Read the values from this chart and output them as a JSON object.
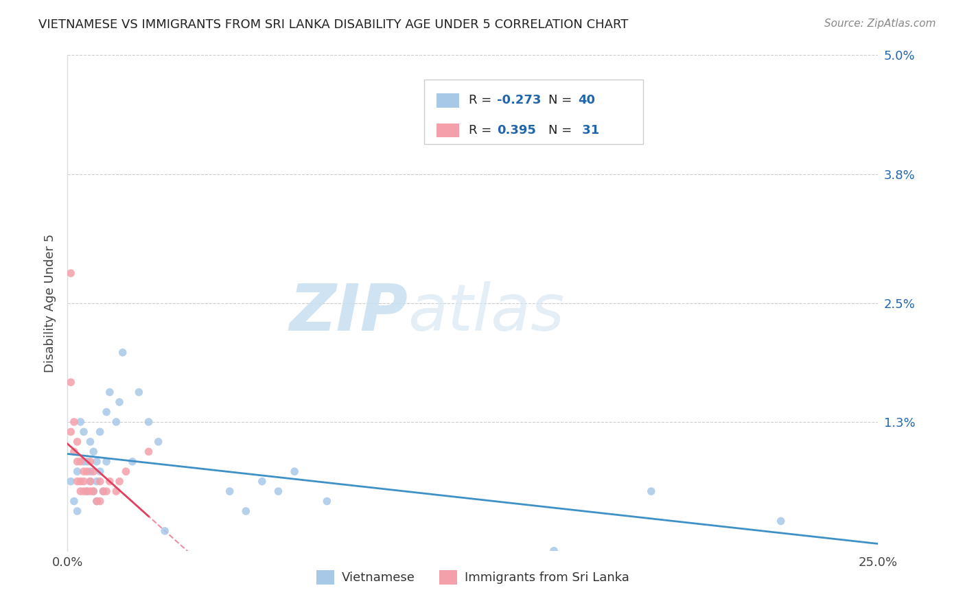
{
  "title": "VIETNAMESE VS IMMIGRANTS FROM SRI LANKA DISABILITY AGE UNDER 5 CORRELATION CHART",
  "source": "Source: ZipAtlas.com",
  "ylabel": "Disability Age Under 5",
  "xlim": [
    0.0,
    0.25
  ],
  "ylim": [
    0.0,
    0.05
  ],
  "yticks": [
    0.0,
    0.013,
    0.025,
    0.038,
    0.05
  ],
  "ytick_labels": [
    "",
    "1.3%",
    "2.5%",
    "3.8%",
    "5.0%"
  ],
  "xtick_labels": [
    "0.0%",
    "25.0%"
  ],
  "background_color": "#ffffff",
  "grid_color": "#cccccc",
  "blue_color": "#a8c8e8",
  "pink_color": "#f4a0aa",
  "line_blue": "#4090c8",
  "line_pink": "#e04060",
  "r_color": "#2166ac",
  "legend_box_color": "#2166ac",
  "vietnamese_x": [
    0.001,
    0.002,
    0.003,
    0.003,
    0.004,
    0.005,
    0.005,
    0.006,
    0.006,
    0.007,
    0.007,
    0.007,
    0.008,
    0.008,
    0.009,
    0.009,
    0.009,
    0.01,
    0.01,
    0.011,
    0.012,
    0.012,
    0.013,
    0.015,
    0.016,
    0.017,
    0.02,
    0.022,
    0.025,
    0.028,
    0.03,
    0.05,
    0.055,
    0.06,
    0.065,
    0.07,
    0.08,
    0.15,
    0.18,
    0.22
  ],
  "vietnamese_y": [
    0.007,
    0.005,
    0.008,
    0.004,
    0.013,
    0.012,
    0.009,
    0.006,
    0.009,
    0.007,
    0.011,
    0.008,
    0.01,
    0.006,
    0.007,
    0.009,
    0.005,
    0.008,
    0.012,
    0.006,
    0.009,
    0.014,
    0.016,
    0.013,
    0.015,
    0.02,
    0.009,
    0.016,
    0.013,
    0.011,
    0.002,
    0.006,
    0.004,
    0.007,
    0.006,
    0.008,
    0.005,
    0.0,
    0.006,
    0.003
  ],
  "srilanka_x": [
    0.001,
    0.001,
    0.001,
    0.002,
    0.002,
    0.003,
    0.003,
    0.003,
    0.004,
    0.004,
    0.004,
    0.005,
    0.005,
    0.005,
    0.006,
    0.006,
    0.007,
    0.007,
    0.007,
    0.008,
    0.008,
    0.009,
    0.01,
    0.01,
    0.011,
    0.012,
    0.013,
    0.015,
    0.016,
    0.018,
    0.025
  ],
  "srilanka_y": [
    0.028,
    0.017,
    0.012,
    0.013,
    0.01,
    0.011,
    0.009,
    0.007,
    0.009,
    0.007,
    0.006,
    0.008,
    0.007,
    0.006,
    0.008,
    0.006,
    0.009,
    0.007,
    0.006,
    0.008,
    0.006,
    0.005,
    0.007,
    0.005,
    0.006,
    0.006,
    0.007,
    0.006,
    0.007,
    0.008,
    0.01
  ],
  "legend_labels": [
    "Vietnamese",
    "Immigrants from Sri Lanka"
  ],
  "watermark_zip": "ZIP",
  "watermark_atlas": "atlas"
}
